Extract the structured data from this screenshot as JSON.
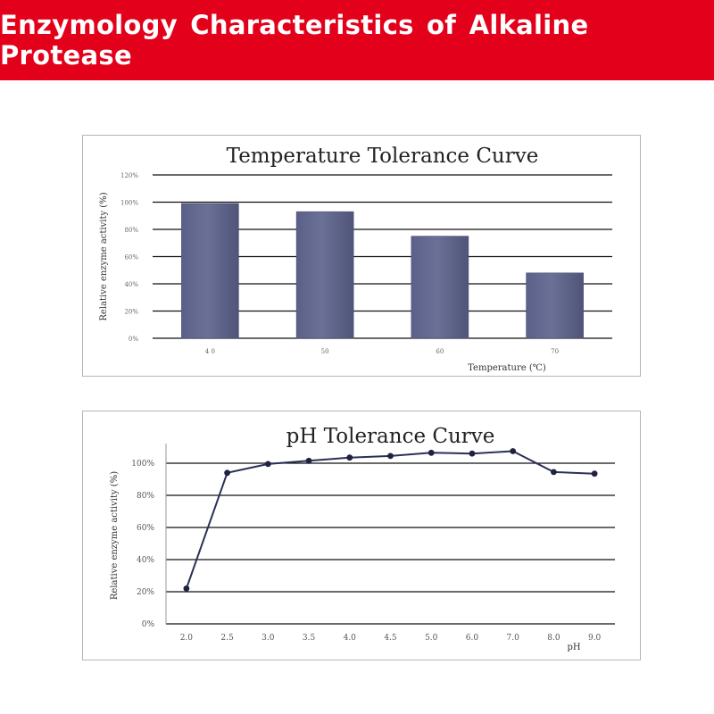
{
  "header": {
    "title": "Enzymology Characteristics of Alkaline Protease",
    "background_color": "#e3001b",
    "text_color": "#ffffff"
  },
  "chart_data": [
    {
      "type": "bar",
      "title": "Temperature Tolerance Curve",
      "xlabel": "Temperature (℃)",
      "ylabel": "Relative enzyme activity (%)",
      "categories": [
        "40",
        "50",
        "60",
        "70"
      ],
      "category_tick_labels": [
        "4 0",
        "50",
        "60",
        "70"
      ],
      "values": [
        99,
        93,
        75,
        48
      ],
      "ylim": [
        0,
        120
      ],
      "y_ticks": [
        0,
        20,
        40,
        60,
        80,
        100,
        120
      ],
      "y_tick_labels": [
        "0%",
        "20%",
        "40%",
        "60%",
        "80%",
        "100%",
        "120%"
      ],
      "grid": true,
      "bar_color": "#6b7196"
    },
    {
      "type": "line",
      "title": "pH Tolerance Curve",
      "xlabel": "pH",
      "ylabel": "Relative enzyme activity (%)",
      "categories": [
        "2.0",
        "2.5",
        "3.0",
        "3.5",
        "4.0",
        "4.5",
        "5.0",
        "6.0",
        "7.0",
        "8.0",
        "9.0"
      ],
      "values": [
        22,
        94,
        99.5,
        101.5,
        103.5,
        104.5,
        106.5,
        106,
        107.5,
        94.5,
        93.5
      ],
      "ylim": [
        0,
        110
      ],
      "y_ticks": [
        0,
        20,
        40,
        60,
        80,
        100
      ],
      "y_tick_labels": [
        "0%",
        "20%",
        "40%",
        "60%",
        "80%",
        "100%"
      ],
      "grid": true,
      "line_color": "#2b2f55"
    }
  ]
}
